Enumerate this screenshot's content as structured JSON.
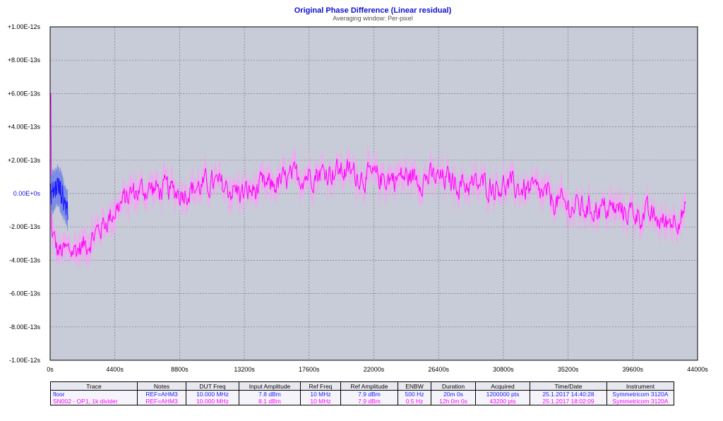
{
  "chart_data": {
    "type": "line",
    "title": "Original Phase Difference (Linear residual)",
    "subtitle": "Averaging window: Per-pixel",
    "xlim": [
      0,
      44000
    ],
    "ylim": [
      -1e-12,
      1e-12
    ],
    "x_ticks": [
      "0s",
      "4400s",
      "8800s",
      "13200s",
      "17600s",
      "22000s",
      "26400s",
      "30800s",
      "35200s",
      "39600s",
      "44000s"
    ],
    "y_ticks": [
      "+1.00E-12s",
      "+8.00E-13s",
      "+6.00E-13s",
      "+4.00E-13s",
      "+2.00E-13s",
      "0.00E+0s",
      "-2.00E-13s",
      "-4.00E-13s",
      "-6.00E-13s",
      "-8.00E-13s",
      "-1.00E-12s"
    ],
    "grid": true,
    "background": "#c8ccd8",
    "series": [
      {
        "name": "floor",
        "color": "#1a1aff",
        "band_color": "#6f7fe6",
        "x_range": [
          0,
          1200
        ],
        "approx_level": [
          0,
          2e-14,
          5e-14,
          1e-14,
          -5e-14,
          -1e-13
        ],
        "band_halfwidth": 1.2e-13
      },
      {
        "name": "SN002 - OP1, 1k divider",
        "color": "#ff00ff",
        "band_color": "#f2a6f2",
        "x_range": [
          0,
          43200
        ],
        "trend_x": [
          0,
          500,
          1200,
          2200,
          3300,
          4400,
          5500,
          6600,
          8800,
          11000,
          13200,
          15400,
          17600,
          19800,
          22000,
          24200,
          26400,
          28600,
          30800,
          33000,
          35200,
          37400,
          39600,
          40800,
          41800,
          42500,
          43200
        ],
        "trend_y": [
          -2e-13,
          -3.5e-13,
          -3.5e-13,
          -3.2e-13,
          -2.2e-13,
          -1e-13,
          0.0,
          3e-14,
          1e-14,
          6e-14,
          0.0,
          6e-14,
          1.2e-13,
          1.4e-13,
          9e-14,
          1e-13,
          9e-14,
          5e-14,
          5e-14,
          1e-14,
          -8e-14,
          -9e-14,
          -1.1e-13,
          -1.4e-13,
          -1.8e-13,
          -1.4e-13,
          -1.1e-13
        ],
        "noise_amplitude": 1e-13,
        "start_value": 6e-13
      }
    ]
  },
  "legend_table": {
    "headers": [
      "Trace",
      "Notes",
      "DUT Freq",
      "Input Amplitude",
      "Ref Freq",
      "Ref Amplitude",
      "ENBW",
      "Duration",
      "Acquired",
      "Time/Date",
      "Instrument"
    ],
    "rows": [
      {
        "color": "#1a1aff",
        "cells": [
          "floor",
          "REF=AHM3",
          "10.000 MHz",
          "7.8 dBm",
          "10 MHz",
          "7.9 dBm",
          "500 Hz",
          "20m 0s",
          "1200000 pts",
          "25.1.2017 14:40:28",
          "Symmetricom 3120A"
        ]
      },
      {
        "color": "#ff00ff",
        "cells": [
          "SN002 - OP1, 1k divider",
          "REF=AHM3",
          "10.000 MHz",
          "8.1 dBm",
          "10 MHz",
          "7.9 dBm",
          "0.5 Hz",
          "12h 0m 0s",
          "43200 pts",
          "25.1.2017 18:02:09",
          "Symmetricom 3120A"
        ]
      }
    ]
  }
}
